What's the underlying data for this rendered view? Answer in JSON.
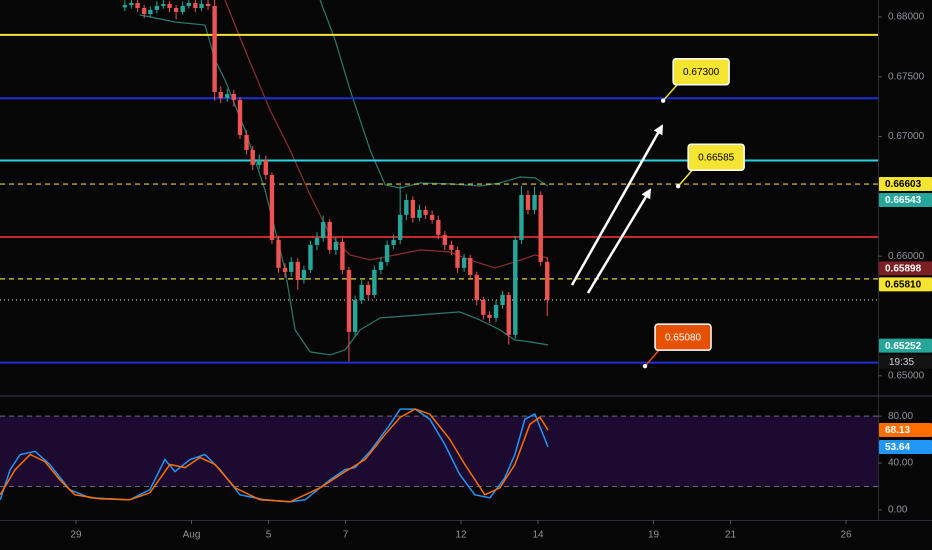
{
  "chart_data": [
    {
      "type": "candlestick",
      "xlim": [
        -1.974,
        20.831
      ],
      "ylim": [
        0.64839,
        0.68142
      ],
      "yticks": [
        {
          "value": 0.68,
          "label": "0.68000"
        },
        {
          "value": 0.675,
          "label": "0.67500"
        },
        {
          "value": 0.67,
          "label": "0.67000"
        },
        {
          "value": 0.66,
          "label": "0.66000"
        },
        {
          "value": 0.65,
          "label": "0.65000"
        }
      ],
      "up_color": "#26a69a",
      "down_color": "#ef5350",
      "x": [
        1.27,
        1.44,
        1.6,
        1.77,
        1.93,
        2.1,
        2.27,
        2.43,
        2.6,
        2.77,
        2.93,
        3.1,
        3.26,
        3.43,
        3.6,
        3.76,
        3.93,
        4.1,
        4.26,
        4.43,
        4.59,
        4.76,
        4.93,
        5.09,
        5.26,
        5.43,
        5.59,
        5.76,
        5.92,
        6.09,
        6.26,
        6.42,
        6.59,
        6.75,
        6.92,
        7.09,
        7.25,
        7.42,
        7.59,
        7.75,
        7.92,
        8.08,
        8.25,
        8.42,
        8.58,
        8.75,
        8.92,
        9.08,
        9.25,
        9.41,
        9.58,
        9.75,
        9.91,
        10.08,
        10.24,
        10.41,
        10.58,
        10.74,
        10.91,
        11.08,
        11.24,
        11.41,
        11.57,
        11.74,
        11.91,
        12.07,
        12.24
      ],
      "open": [
        0.6808,
        0.681,
        0.68117,
        0.68075,
        0.68025,
        0.68059,
        0.68092,
        0.68109,
        0.68075,
        0.68042,
        0.68092,
        0.68117,
        0.68075,
        0.68109,
        0.68092,
        0.67373,
        0.67323,
        0.67356,
        0.67306,
        0.67014,
        0.66888,
        0.66763,
        0.66805,
        0.66679,
        0.66136,
        0.65902,
        0.65868,
        0.65952,
        0.65801,
        0.65885,
        0.66094,
        0.66152,
        0.66286,
        0.66052,
        0.66119,
        0.65885,
        0.65367,
        0.65634,
        0.6576,
        0.65676,
        0.65885,
        0.65952,
        0.66094,
        0.66136,
        0.66345,
        0.6647,
        0.6632,
        0.66387,
        0.66345,
        0.66303,
        0.66178,
        0.66094,
        0.66052,
        0.65902,
        0.65985,
        0.65843,
        0.65634,
        0.65509,
        0.65484,
        0.65592,
        0.65676,
        0.65342,
        0.66136,
        0.66512,
        0.66387,
        0.66512,
        0.65952
      ],
      "high": [
        0.6814,
        0.68142,
        0.68142,
        0.681,
        0.6809,
        0.6813,
        0.6814,
        0.68135,
        0.681,
        0.6813,
        0.68142,
        0.68142,
        0.68142,
        0.68142,
        0.68142,
        0.6742,
        0.674,
        0.6739,
        0.6733,
        0.6705,
        0.6692,
        0.6685,
        0.6684,
        0.667,
        0.6617,
        0.6594,
        0.6599,
        0.6598,
        0.6592,
        0.6613,
        0.662,
        0.6634,
        0.6631,
        0.6616,
        0.6615,
        0.6591,
        0.6567,
        0.658,
        0.6579,
        0.6592,
        0.6599,
        0.6613,
        0.6618,
        0.6659,
        0.6652,
        0.665,
        0.6643,
        0.6642,
        0.6638,
        0.6634,
        0.6621,
        0.6613,
        0.6608,
        0.6602,
        0.6601,
        0.6587,
        0.6566,
        0.6554,
        0.6563,
        0.6571,
        0.657,
        0.6617,
        0.6659,
        0.6655,
        0.6658,
        0.6654,
        0.6599
      ],
      "low": [
        0.6805,
        0.6807,
        0.6804,
        0.6799,
        0.67995,
        0.6803,
        0.6807,
        0.6804,
        0.6798,
        0.6802,
        0.6807,
        0.6804,
        0.6805,
        0.6806,
        0.673,
        0.6728,
        0.6729,
        0.6725,
        0.6698,
        0.6685,
        0.6672,
        0.6673,
        0.6664,
        0.661,
        0.6586,
        0.6582,
        0.6583,
        0.6572,
        0.6577,
        0.6586,
        0.6605,
        0.6612,
        0.6602,
        0.6601,
        0.6585,
        0.6512,
        0.6533,
        0.656,
        0.6564,
        0.6565,
        0.6585,
        0.6592,
        0.6606,
        0.661,
        0.663,
        0.6628,
        0.6629,
        0.6631,
        0.6627,
        0.6614,
        0.6605,
        0.6601,
        0.6586,
        0.6587,
        0.658,
        0.6559,
        0.6547,
        0.6544,
        0.6545,
        0.6556,
        0.6526,
        0.6531,
        0.661,
        0.6635,
        0.6635,
        0.6592,
        0.655
      ],
      "close": [
        0.681,
        0.68117,
        0.68075,
        0.68025,
        0.68059,
        0.68092,
        0.68109,
        0.68075,
        0.68042,
        0.68092,
        0.68117,
        0.68075,
        0.68109,
        0.68092,
        0.67373,
        0.67323,
        0.67356,
        0.67306,
        0.67014,
        0.66888,
        0.66763,
        0.66805,
        0.66679,
        0.66136,
        0.65902,
        0.65868,
        0.65952,
        0.65801,
        0.65885,
        0.66094,
        0.66152,
        0.66286,
        0.66052,
        0.66119,
        0.65885,
        0.65367,
        0.65634,
        0.6576,
        0.65676,
        0.65885,
        0.65952,
        0.66094,
        0.66136,
        0.66345,
        0.6647,
        0.6632,
        0.66387,
        0.66345,
        0.66303,
        0.66178,
        0.66094,
        0.66052,
        0.65902,
        0.65985,
        0.65843,
        0.65634,
        0.65509,
        0.65484,
        0.65592,
        0.65676,
        0.65342,
        0.66136,
        0.66512,
        0.66387,
        0.66512,
        0.65952,
        0.65634
      ],
      "overlays": [
        {
          "color": "#2b7a70",
          "x": [
            1.66,
            2.57,
            3.35,
            3.61,
            3.87,
            4.39,
            4.91,
            5.43,
            5.69,
            6.08,
            6.6,
            6.99,
            7.38,
            7.9,
            8.94,
            9.97,
            10.49,
            11.01,
            11.4,
            11.79,
            12.26
          ],
          "values": [
            0.68017,
            0.67958,
            0.67933,
            0.67641,
            0.67473,
            0.67055,
            0.66554,
            0.65885,
            0.65383,
            0.65199,
            0.65174,
            0.65216,
            0.65383,
            0.65484,
            0.65509,
            0.65534,
            0.65467,
            0.65383,
            0.653,
            0.65283,
            0.65258
          ]
        },
        {
          "color": "#2b7a70",
          "x": [
            6.34,
            6.73,
            7.12,
            7.64,
            8.03,
            8.42,
            8.94,
            9.71,
            10.49,
            11.01,
            11.53,
            11.92,
            12.26
          ],
          "values": [
            0.68142,
            0.67808,
            0.6739,
            0.66888,
            0.66596,
            0.6657,
            0.66612,
            0.66604,
            0.66587,
            0.66612,
            0.66662,
            0.66654,
            0.66587
          ]
        },
        {
          "color": "#8c2f2c",
          "x": [
            3.87,
            4.39,
            5.04,
            5.56,
            6.08,
            6.6,
            7.12,
            7.64,
            8.29,
            8.94,
            9.71,
            10.23,
            10.88,
            11.4,
            11.92,
            12.26
          ],
          "values": [
            0.68142,
            0.67724,
            0.67223,
            0.66888,
            0.66512,
            0.66178,
            0.6601,
            0.65969,
            0.6601,
            0.66052,
            0.66035,
            0.65969,
            0.65902,
            0.65952,
            0.6601,
            0.65985
          ]
        }
      ],
      "levels": [
        {
          "value": 0.6785,
          "color": "#f5e431",
          "style": "solid"
        },
        {
          "value": 0.6732,
          "color": "#1e2fd6",
          "style": "solid"
        },
        {
          "value": 0.668,
          "color": "#28d3e6",
          "style": "solid"
        },
        {
          "value": 0.66603,
          "color": "#e6d432",
          "style": "dashed"
        },
        {
          "value": 0.6616,
          "color": "#c62828",
          "style": "solid"
        },
        {
          "value": 0.6581,
          "color": "#e6d432",
          "style": "dashed"
        },
        {
          "value": 0.65634,
          "color": "#d0d0d0",
          "style": "dotted"
        },
        {
          "value": 0.6511,
          "color": "#1e2fd6",
          "style": "solid"
        }
      ],
      "price_labels": [
        {
          "value": 0.66603,
          "bg": "#f5e431",
          "fg": "#000000"
        },
        {
          "value": 0.66543,
          "bg": "#26a69a",
          "fg": "#ffffff"
        },
        {
          "value": 0.65898,
          "bg": "#7a1f22",
          "fg": "#ffffff"
        },
        {
          "value": 0.6581,
          "label": "0.65810",
          "bg": "#f5e431",
          "fg": "#000000"
        },
        {
          "value": 0.65252,
          "bg": "#26a69a",
          "fg": "#ffffff"
        }
      ],
      "countdown": "19:35",
      "annotations": [
        {
          "x": 15.25,
          "value": 0.673,
          "label": "0.67300",
          "bg": "#f5e431",
          "fg": "#000000"
        },
        {
          "x": 15.64,
          "value": 0.66585,
          "bg": "#f5e431",
          "fg": "#000000"
        },
        {
          "x": 14.78,
          "value": 0.6508,
          "label": "0.65080",
          "bg": "#e65100",
          "fg": "#ffffff"
        }
      ]
    },
    {
      "type": "line",
      "xlim": [
        -1.974,
        20.831
      ],
      "ylim": [
        -8.6,
        96.3
      ],
      "yticks": [
        {
          "value": 80,
          "label": "80.00"
        },
        {
          "value": 40,
          "label": "40.00"
        },
        {
          "value": 0,
          "label": "0.00"
        }
      ],
      "xticks": [
        {
          "value": 0,
          "label": "29"
        },
        {
          "value": 3,
          "label": "Aug"
        },
        {
          "value": 5,
          "label": "5"
        },
        {
          "value": 7,
          "label": "7"
        },
        {
          "value": 10,
          "label": "12"
        },
        {
          "value": 12,
          "label": "14"
        },
        {
          "value": 15,
          "label": "19"
        },
        {
          "value": 17,
          "label": "21"
        },
        {
          "value": 20,
          "label": "26"
        }
      ],
      "bands": [
        80,
        20
      ],
      "band_fill": "#1c0a30",
      "series": [
        {
          "color": "#2196f3",
          "x": [
            -1.97,
            -1.71,
            -1.45,
            -1.06,
            -0.68,
            -0.16,
            0.36,
            1.4,
            1.92,
            2.31,
            2.57,
            2.96,
            3.35,
            3.74,
            4.26,
            4.91,
            5.56,
            5.95,
            6.6,
            6.99,
            7.25,
            7.64,
            8.16,
            8.42,
            8.81,
            9.19,
            9.58,
            9.97,
            10.36,
            10.75,
            11.14,
            11.4,
            11.66,
            11.92,
            12.26
          ],
          "values": [
            8.6,
            34.4,
            47.3,
            49.9,
            38.7,
            17.2,
            10.3,
            8.6,
            17.2,
            43.0,
            32.7,
            43.0,
            47.3,
            34.4,
            12.9,
            8.6,
            6.9,
            8.6,
            25.8,
            34.4,
            36.1,
            49.9,
            73.1,
            86.0,
            86.0,
            77.4,
            55.9,
            30.1,
            12.9,
            10.3,
            27.5,
            47.3,
            77.4,
            81.7,
            53.64
          ]
        },
        {
          "color": "#ff6d00",
          "x": [
            -1.97,
            -1.58,
            -1.19,
            -0.81,
            -0.42,
            -0.03,
            0.62,
            1.4,
            1.92,
            2.44,
            2.83,
            3.22,
            3.61,
            4.13,
            4.78,
            5.56,
            6.34,
            6.99,
            7.51,
            8.03,
            8.42,
            8.81,
            9.19,
            9.71,
            10.1,
            10.62,
            11.01,
            11.4,
            11.79,
            12.05,
            12.26
          ],
          "values": [
            12.9,
            34.4,
            47.3,
            41.3,
            25.8,
            12.9,
            9.5,
            8.6,
            14.6,
            38.7,
            36.1,
            44.7,
            38.7,
            18.9,
            8.6,
            6.9,
            18.9,
            32.7,
            43.0,
            64.5,
            79.1,
            86.0,
            81.7,
            60.2,
            38.7,
            12.9,
            18.9,
            38.7,
            73.1,
            79.1,
            68.13
          ]
        }
      ]
    }
  ]
}
